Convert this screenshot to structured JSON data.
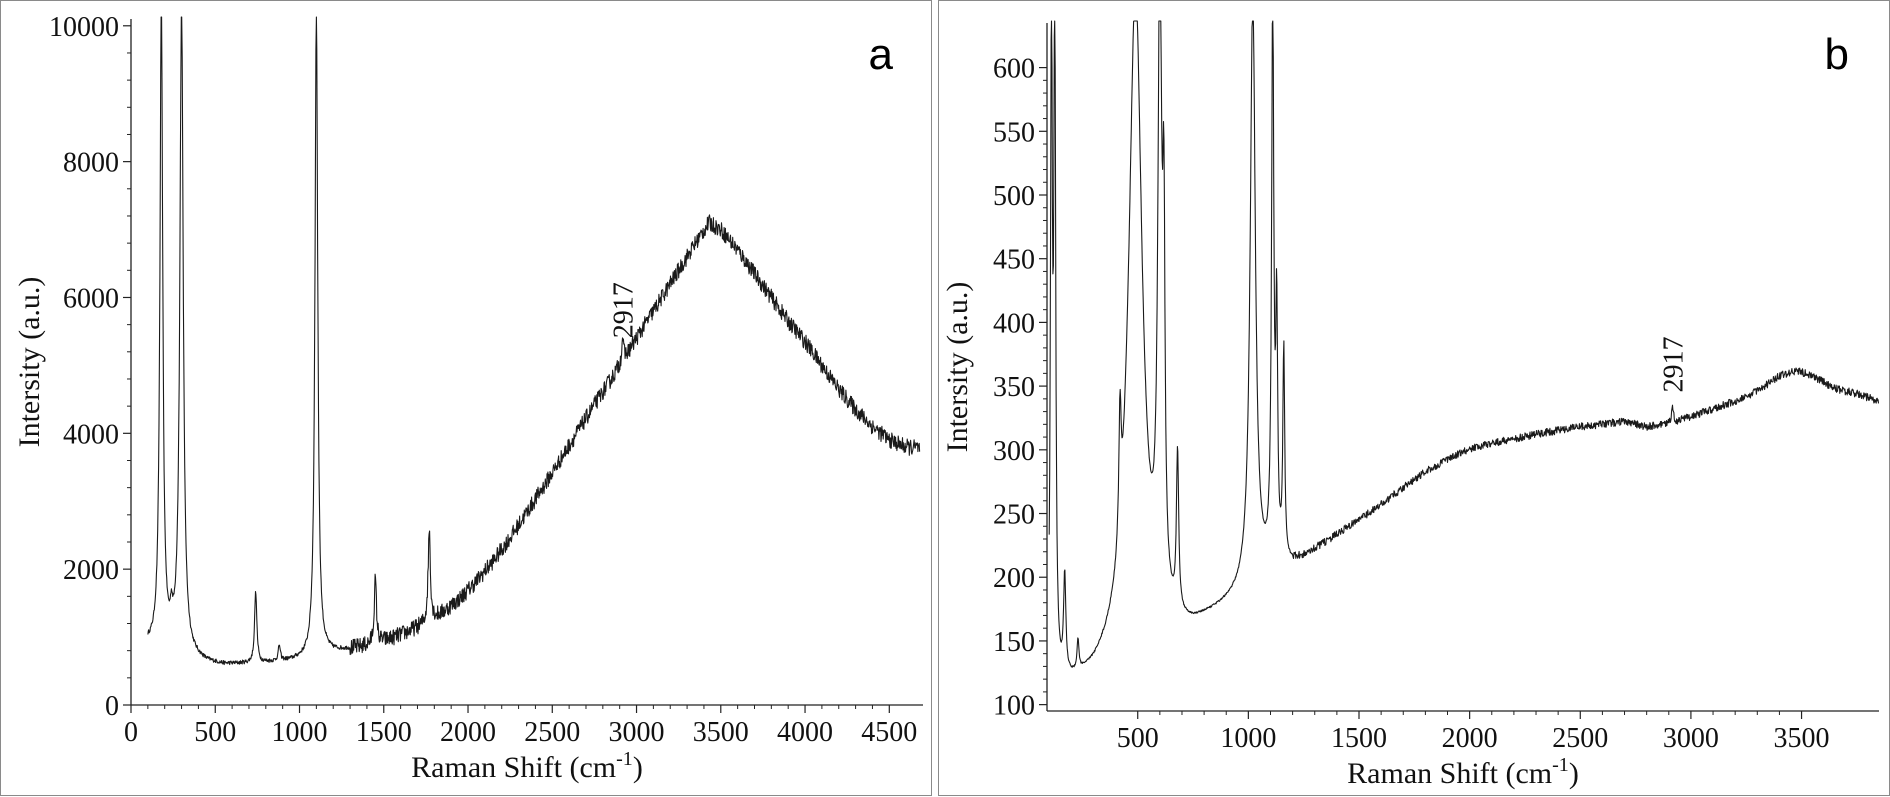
{
  "chart_data": [
    {
      "type": "line",
      "panel_label": "a",
      "xlabel": "Raman Shift (cm",
      "xlabel_sup": "-1",
      "xlabel_end": ")",
      "ylabel": "Intersity (a.u.)",
      "xlim": [
        0,
        4700
      ],
      "ylim": [
        0,
        10100
      ],
      "xticks": [
        0,
        500,
        1000,
        1500,
        2000,
        2500,
        3000,
        3500,
        4000,
        4500
      ],
      "yticks": [
        0,
        2000,
        4000,
        6000,
        8000,
        10000
      ],
      "xtick_labels": [
        "0",
        "500",
        "1000",
        "1500",
        "2000",
        "2500",
        "3000",
        "3500",
        "4000",
        "4500"
      ],
      "ytick_labels": [
        "0",
        "2000",
        "4000",
        "6000",
        "8000",
        "10000"
      ],
      "annotations": [
        {
          "text": "2917",
          "x": 2917,
          "y": 5400
        }
      ],
      "baseline": [
        [
          100,
          880
        ],
        [
          150,
          840
        ],
        [
          250,
          780
        ],
        [
          350,
          700
        ],
        [
          450,
          620
        ],
        [
          550,
          590
        ],
        [
          650,
          600
        ],
        [
          750,
          610
        ],
        [
          850,
          630
        ],
        [
          950,
          650
        ],
        [
          1050,
          690
        ],
        [
          1150,
          760
        ],
        [
          1250,
          800
        ],
        [
          1350,
          840
        ],
        [
          1450,
          900
        ],
        [
          1550,
          980
        ],
        [
          1650,
          1080
        ],
        [
          1750,
          1200
        ],
        [
          1850,
          1360
        ],
        [
          1950,
          1560
        ],
        [
          2050,
          1820
        ],
        [
          2150,
          2120
        ],
        [
          2250,
          2460
        ],
        [
          2350,
          2840
        ],
        [
          2450,
          3220
        ],
        [
          2550,
          3620
        ],
        [
          2650,
          4020
        ],
        [
          2750,
          4420
        ],
        [
          2850,
          4800
        ],
        [
          2950,
          5200
        ],
        [
          3050,
          5600
        ],
        [
          3150,
          6000
        ],
        [
          3250,
          6400
        ],
        [
          3350,
          6800
        ],
        [
          3430,
          7100
        ],
        [
          3500,
          7000
        ],
        [
          3600,
          6700
        ],
        [
          3700,
          6350
        ],
        [
          3800,
          6000
        ],
        [
          3900,
          5650
        ],
        [
          4000,
          5350
        ],
        [
          4100,
          5000
        ],
        [
          4200,
          4650
        ],
        [
          4300,
          4350
        ],
        [
          4400,
          4100
        ],
        [
          4500,
          3900
        ],
        [
          4600,
          3800
        ],
        [
          4680,
          3780
        ]
      ],
      "peaks": [
        {
          "x": 180,
          "height": 9500,
          "width": 10
        },
        {
          "x": 240,
          "height": 300,
          "width": 8
        },
        {
          "x": 300,
          "height": 9500,
          "width": 12
        },
        {
          "x": 740,
          "height": 1050,
          "width": 8
        },
        {
          "x": 880,
          "height": 230,
          "width": 7
        },
        {
          "x": 1100,
          "height": 9500,
          "width": 10
        },
        {
          "x": 1450,
          "height": 940,
          "width": 8
        },
        {
          "x": 1770,
          "height": 1360,
          "width": 8
        },
        {
          "x": 2917,
          "height": 350,
          "width": 6
        }
      ],
      "noise_amplitude": 120,
      "noise_start_x": 1300
    },
    {
      "type": "line",
      "panel_label": "b",
      "xlabel": "Raman Shift (cm",
      "xlabel_sup": "-1",
      "xlabel_end": ")",
      "ylabel": "Intersity (a.u.)",
      "xlim": [
        90,
        3850
      ],
      "ylim": [
        95,
        635
      ],
      "xticks": [
        500,
        1000,
        1500,
        2000,
        2500,
        3000,
        3500
      ],
      "yticks": [
        100,
        150,
        200,
        250,
        300,
        350,
        400,
        450,
        500,
        550,
        600
      ],
      "xtick_labels": [
        "500",
        "1000",
        "1500",
        "2000",
        "2500",
        "3000",
        "3500"
      ],
      "ytick_labels": [
        "100",
        "150",
        "200",
        "250",
        "300",
        "350",
        "400",
        "450",
        "500",
        "550",
        "600"
      ],
      "annotations": [
        {
          "text": "2917",
          "x": 2917,
          "y": 345
        }
      ],
      "baseline": [
        [
          100,
          105
        ],
        [
          150,
          112
        ],
        [
          200,
          115
        ],
        [
          250,
          118
        ],
        [
          300,
          122
        ],
        [
          350,
          130
        ],
        [
          400,
          140
        ],
        [
          450,
          165
        ],
        [
          550,
          150
        ],
        [
          650,
          150
        ],
        [
          750,
          158
        ],
        [
          850,
          170
        ],
        [
          950,
          182
        ],
        [
          1000,
          190
        ],
        [
          1100,
          200
        ],
        [
          1200,
          208
        ],
        [
          1300,
          220
        ],
        [
          1400,
          232
        ],
        [
          1500,
          244
        ],
        [
          1600,
          256
        ],
        [
          1700,
          270
        ],
        [
          1800,
          282
        ],
        [
          1900,
          292
        ],
        [
          2000,
          300
        ],
        [
          2100,
          305
        ],
        [
          2200,
          308
        ],
        [
          2300,
          312
        ],
        [
          2400,
          315
        ],
        [
          2500,
          318
        ],
        [
          2600,
          320
        ],
        [
          2700,
          322
        ],
        [
          2800,
          318
        ],
        [
          2900,
          320
        ],
        [
          3000,
          326
        ],
        [
          3100,
          332
        ],
        [
          3200,
          338
        ],
        [
          3300,
          346
        ],
        [
          3400,
          358
        ],
        [
          3480,
          362
        ],
        [
          3550,
          358
        ],
        [
          3650,
          348
        ],
        [
          3750,
          344
        ],
        [
          3850,
          338
        ]
      ],
      "peaks": [
        {
          "x": 110,
          "height": 520,
          "width": 5
        },
        {
          "x": 125,
          "height": 520,
          "width": 5
        },
        {
          "x": 170,
          "height": 78,
          "width": 6
        },
        {
          "x": 230,
          "height": 24,
          "width": 5
        },
        {
          "x": 420,
          "height": 95,
          "width": 6
        },
        {
          "x": 490,
          "height": 500,
          "width": 35
        },
        {
          "x": 600,
          "height": 500,
          "width": 10
        },
        {
          "x": 618,
          "height": 250,
          "width": 6
        },
        {
          "x": 680,
          "height": 125,
          "width": 6
        },
        {
          "x": 1020,
          "height": 460,
          "width": 14
        },
        {
          "x": 1110,
          "height": 440,
          "width": 6
        },
        {
          "x": 1128,
          "height": 185,
          "width": 5
        },
        {
          "x": 1160,
          "height": 165,
          "width": 5
        },
        {
          "x": 2917,
          "height": 14,
          "width": 5
        }
      ],
      "noise_amplitude": 3,
      "noise_start_x": 1200
    }
  ]
}
